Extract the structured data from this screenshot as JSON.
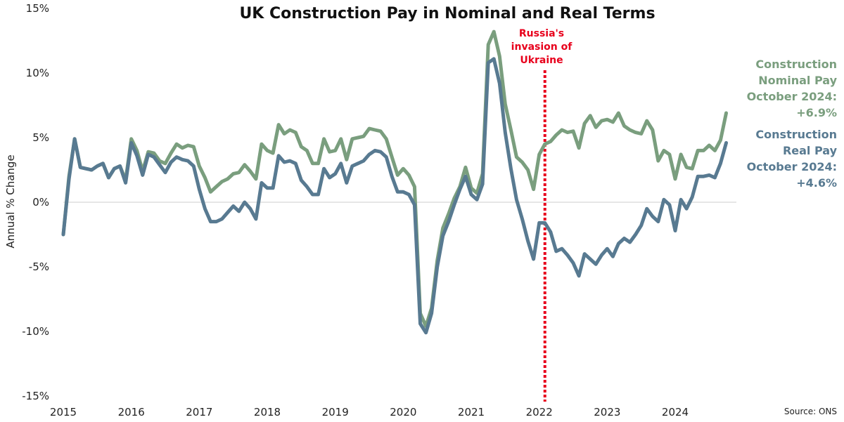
{
  "chart_data": {
    "type": "line",
    "title": "UK Construction Pay in Nominal and Real Terms",
    "ylabel": "Annual % Change",
    "xlabel": "",
    "ylim": [
      -15,
      15
    ],
    "xlim": [
      2015,
      2024.9
    ],
    "y_ticks": [
      15,
      10,
      5,
      0,
      -5,
      -10,
      -15
    ],
    "y_tick_labels": [
      "15%",
      "10%",
      "5%",
      "0%",
      "-5%",
      "-10%",
      "-15%"
    ],
    "x_ticks": [
      2015,
      2016,
      2017,
      2018,
      2019,
      2020,
      2021,
      2022,
      2023,
      2024
    ],
    "x_tick_labels": [
      "2015",
      "2016",
      "2017",
      "2018",
      "2019",
      "2020",
      "2021",
      "2022",
      "2023",
      "2024"
    ],
    "grid": false,
    "zero_line": true,
    "x_start": "2015-01",
    "x_end": "2024-10",
    "x_frequency": "monthly",
    "series": [
      {
        "name": "Construction Nominal Pay",
        "color": "#7a9e7e",
        "values": [
          -2.5,
          2.0,
          4.9,
          2.7,
          2.6,
          2.5,
          2.8,
          3.0,
          1.9,
          2.6,
          2.8,
          1.7,
          4.9,
          4.0,
          2.4,
          3.9,
          3.8,
          3.2,
          3.0,
          3.8,
          4.5,
          4.2,
          4.4,
          4.3,
          2.8,
          1.9,
          0.8,
          1.2,
          1.6,
          1.8,
          2.2,
          2.3,
          2.9,
          2.4,
          1.8,
          4.5,
          4.0,
          3.8,
          6.0,
          5.3,
          5.6,
          5.4,
          4.3,
          4.0,
          3.0,
          3.0,
          4.9,
          3.9,
          4.0,
          4.9,
          3.3,
          4.9,
          5.0,
          5.1,
          5.7,
          5.6,
          5.5,
          4.9,
          3.5,
          2.1,
          2.6,
          2.1,
          1.2,
          -8.6,
          -9.6,
          -8.2,
          -4.5,
          -2.0,
          -0.9,
          0.3,
          1.2,
          2.7,
          1.1,
          0.7,
          2.2,
          12.2,
          13.2,
          11.3,
          7.6,
          5.6,
          3.5,
          3.1,
          2.5,
          1.0,
          3.7,
          4.5,
          4.7,
          5.2,
          5.6,
          5.4,
          5.5,
          4.2,
          6.1,
          6.7,
          5.8,
          6.3,
          6.4,
          6.2,
          6.9,
          5.9,
          5.6,
          5.4,
          5.3,
          6.3,
          5.6,
          3.2,
          4.0,
          3.7,
          1.8,
          3.7,
          2.7,
          2.6,
          4.0,
          4.0,
          4.4,
          4.0,
          4.8,
          6.9
        ]
      },
      {
        "name": "Construction Real Pay",
        "color": "#587a91",
        "values": [
          -2.5,
          1.8,
          4.9,
          2.7,
          2.6,
          2.5,
          2.8,
          3.0,
          1.9,
          2.6,
          2.8,
          1.5,
          4.6,
          3.6,
          2.1,
          3.7,
          3.5,
          2.9,
          2.3,
          3.1,
          3.5,
          3.3,
          3.2,
          2.8,
          1.0,
          -0.5,
          -1.5,
          -1.5,
          -1.3,
          -0.8,
          -0.3,
          -0.7,
          0.0,
          -0.5,
          -1.3,
          1.5,
          1.1,
          1.1,
          3.6,
          3.1,
          3.2,
          3.0,
          1.7,
          1.2,
          0.6,
          0.6,
          2.6,
          1.9,
          2.2,
          3.0,
          1.5,
          2.8,
          3.0,
          3.2,
          3.7,
          4.0,
          3.9,
          3.5,
          2.0,
          0.8,
          0.8,
          0.6,
          -0.2,
          -9.4,
          -10.1,
          -8.6,
          -5.0,
          -2.6,
          -1.5,
          -0.2,
          1.0,
          2.0,
          0.6,
          0.2,
          1.4,
          10.8,
          11.1,
          9.2,
          5.4,
          2.6,
          0.2,
          -1.3,
          -3.0,
          -4.4,
          -1.6,
          -1.6,
          -2.3,
          -3.8,
          -3.6,
          -4.1,
          -4.7,
          -5.7,
          -4.0,
          -4.4,
          -4.8,
          -4.1,
          -3.6,
          -4.2,
          -3.2,
          -2.8,
          -3.1,
          -2.5,
          -1.8,
          -0.5,
          -1.1,
          -1.5,
          0.2,
          -0.2,
          -2.2,
          0.2,
          -0.5,
          0.4,
          2.0,
          2.0,
          2.1,
          1.9,
          3.0,
          4.6
        ]
      }
    ],
    "annotations": {
      "invasion_x": "2022-02",
      "invasion_line_color": "#e8001c",
      "invasion_text": [
        "Russia's",
        "invasion of",
        "Ukraine"
      ],
      "nominal_label": [
        "Construction",
        "Nominal Pay",
        "October 2024:",
        "+6.9%"
      ],
      "real_label": [
        "Construction",
        "Real Pay",
        "October 2024:",
        "+4.6%"
      ]
    },
    "source": "Source: ONS"
  }
}
